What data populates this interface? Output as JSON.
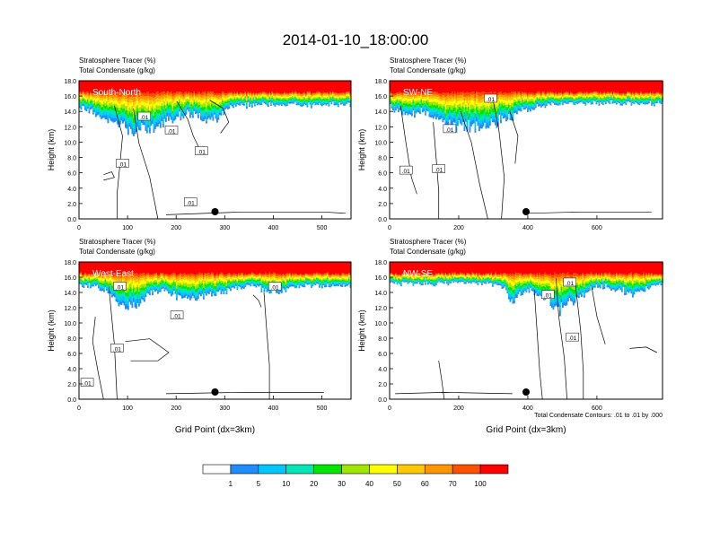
{
  "figure": {
    "title": "2014-01-10_18:00:00",
    "contour_note": "Total Condensate Contours: .01 to .01 by .000",
    "colorbar": {
      "labels": [
        "1",
        "5",
        "10",
        "20",
        "30",
        "40",
        "50",
        "60",
        "70",
        "100"
      ],
      "colors": [
        "#ffffff",
        "#1e8cff",
        "#00c8ff",
        "#00e6b4",
        "#00e600",
        "#a0e600",
        "#ffff00",
        "#ffc800",
        "#ff9600",
        "#ff5000",
        "#ff0000"
      ]
    }
  },
  "chart_data": [
    {
      "type": "heatmap",
      "panel_label": "South-North",
      "title_line1": "Stratosphere Tracer   (%)",
      "title_line2": "Total Condensate   (g/kg)",
      "ylabel": "Height (km)",
      "xlabel": "",
      "xlim": [
        0,
        560
      ],
      "ylim": [
        0,
        18
      ],
      "xticks": [
        "0",
        "100",
        "200",
        "300",
        "400",
        "500"
      ],
      "yticks": [
        "0.0",
        "2.0",
        "4.0",
        "6.0",
        "8.0",
        "10.0",
        "12.0",
        "14.0",
        "16.0",
        "18.0"
      ],
      "marker_x": 280,
      "tropopause_km": 15.8,
      "contour_labels": [
        ".01",
        ".01",
        ".01",
        ".01",
        ".01"
      ]
    },
    {
      "type": "heatmap",
      "panel_label": "SW-NE",
      "title_line1": "Stratosphere Tracer   (%)",
      "title_line2": "Total Condensate   (g/kg)",
      "ylabel": "Height (km)",
      "xlabel": "",
      "xlim": [
        0,
        790
      ],
      "ylim": [
        0,
        18
      ],
      "xticks": [
        "0",
        "200",
        "400",
        "600"
      ],
      "yticks": [
        "0.0",
        "2.0",
        "4.0",
        "6.0",
        "8.0",
        "10.0",
        "12.0",
        "14.0",
        "16.0",
        "18.0"
      ],
      "marker_x": 395,
      "tropopause_km": 15.8,
      "contour_labels": [
        ".01",
        ".01",
        ".01",
        ".01"
      ]
    },
    {
      "type": "heatmap",
      "panel_label": "West-East",
      "title_line1": "Stratosphere Tracer   (%)",
      "title_line2": "Total Condensate   (g/kg)",
      "ylabel": "Height (km)",
      "xlabel": "Grid Point (dx=3km)",
      "xlim": [
        0,
        560
      ],
      "ylim": [
        0,
        18
      ],
      "xticks": [
        "0",
        "100",
        "200",
        "300",
        "400",
        "500"
      ],
      "yticks": [
        "0.0",
        "2.0",
        "4.0",
        "6.0",
        "8.0",
        "10.0",
        "12.0",
        "14.0",
        "16.0",
        "18.0"
      ],
      "marker_x": 280,
      "tropopause_km": 15.8,
      "contour_labels": [
        ".01",
        ".01",
        ".01",
        ".01",
        ".01"
      ]
    },
    {
      "type": "heatmap",
      "panel_label": "NW-SE",
      "title_line1": "Stratosphere Tracer   (%)",
      "title_line2": "Total Condensate   (g/kg)",
      "ylabel": "Height (km)",
      "xlabel": "Grid Point (dx=3km)",
      "xlim": [
        0,
        790
      ],
      "ylim": [
        0,
        18
      ],
      "xticks": [
        "0",
        "200",
        "400",
        "600"
      ],
      "yticks": [
        "0.0",
        "2.0",
        "4.0",
        "6.0",
        "8.0",
        "10.0",
        "12.0",
        "14.0",
        "16.0",
        "18.0"
      ],
      "marker_x": 395,
      "tropopause_km": 15.8,
      "contour_labels": [
        ".01",
        ".01",
        ".01"
      ]
    }
  ]
}
